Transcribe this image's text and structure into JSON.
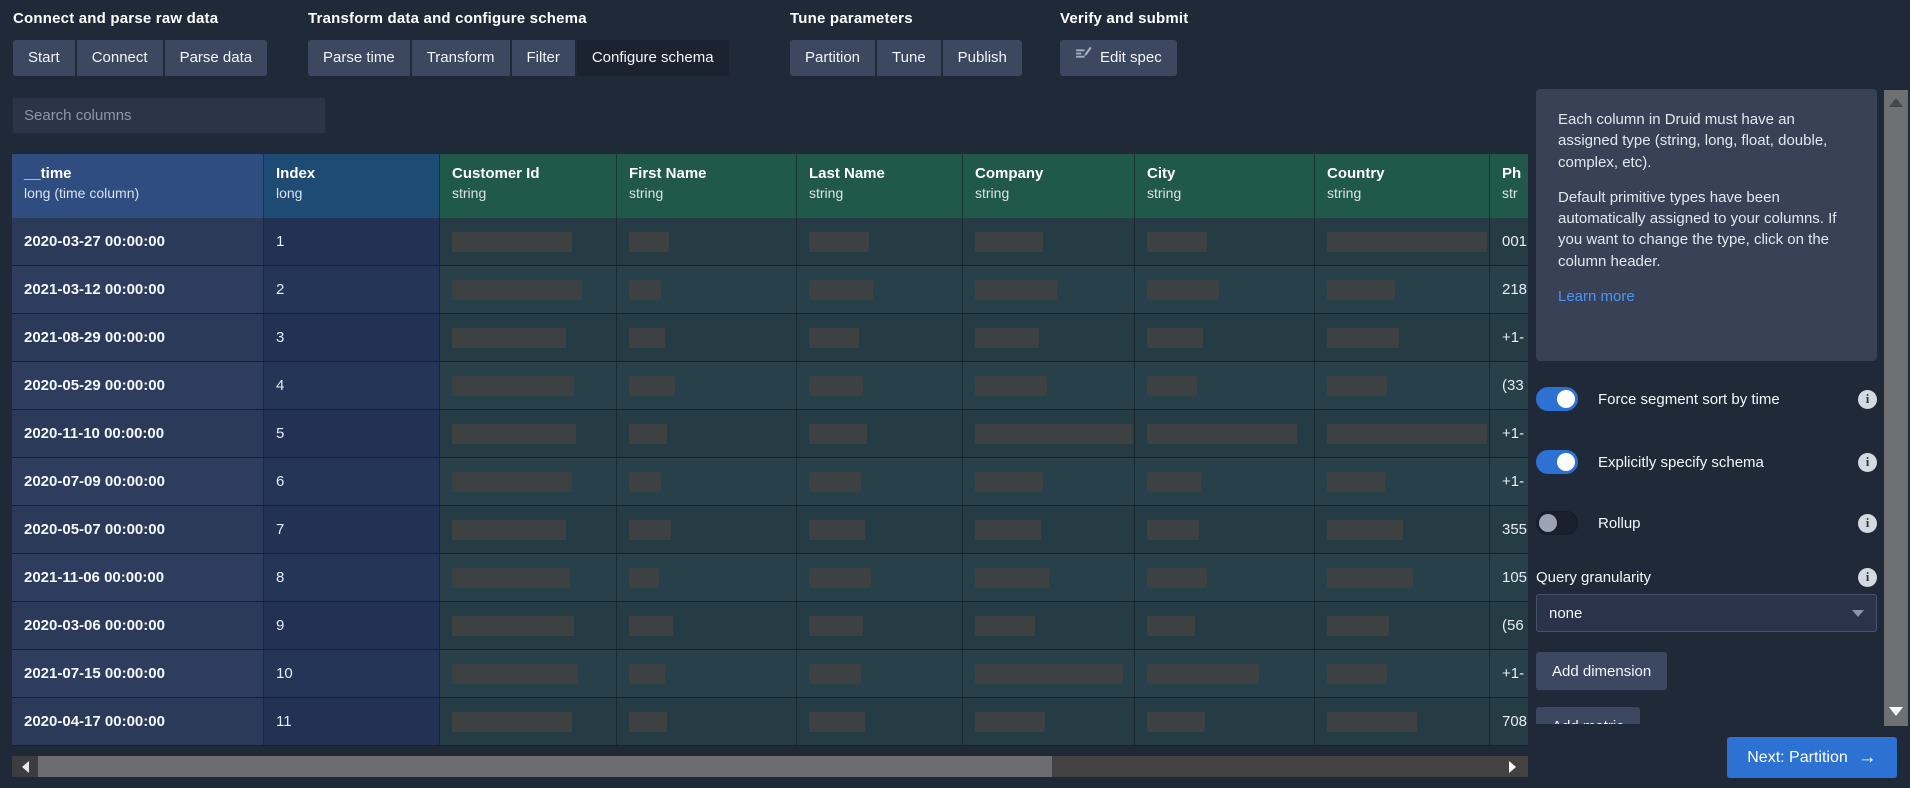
{
  "nav": {
    "active_step": "Configure schema",
    "sections": [
      {
        "label": "Connect and parse raw data",
        "steps": [
          {
            "label": "Start"
          },
          {
            "label": "Connect"
          },
          {
            "label": "Parse data"
          }
        ]
      },
      {
        "label": "Transform data and configure schema",
        "steps": [
          {
            "label": "Parse time"
          },
          {
            "label": "Transform"
          },
          {
            "label": "Filter"
          },
          {
            "label": "Configure schema"
          }
        ]
      },
      {
        "label": "Tune parameters",
        "steps": [
          {
            "label": "Partition"
          },
          {
            "label": "Tune"
          },
          {
            "label": "Publish"
          }
        ]
      },
      {
        "label": "Verify and submit",
        "steps": [
          {
            "label": "Edit spec",
            "icon": "edit-spec-icon"
          }
        ]
      }
    ]
  },
  "search": {
    "placeholder": "Search columns"
  },
  "table": {
    "columns": [
      {
        "name": "__time",
        "type": "long (time column)",
        "group": "time"
      },
      {
        "name": "Index",
        "type": "long",
        "group": "long"
      },
      {
        "name": "Customer Id",
        "type": "string",
        "group": "string"
      },
      {
        "name": "First Name",
        "type": "string",
        "group": "string"
      },
      {
        "name": "Last Name",
        "type": "string",
        "group": "string"
      },
      {
        "name": "Company",
        "type": "string",
        "group": "string"
      },
      {
        "name": "City",
        "type": "string",
        "group": "string"
      },
      {
        "name": "Country",
        "type": "string",
        "group": "string"
      },
      {
        "name": "Ph",
        "type": "str",
        "group": "string"
      }
    ],
    "rows": [
      {
        "time": "2020-03-27 00:00:00",
        "index": "1",
        "phone": "001",
        "redactions": [
          120,
          40,
          60,
          68,
          60,
          160
        ]
      },
      {
        "time": "2021-03-12 00:00:00",
        "index": "2",
        "phone": "218",
        "redactions": [
          130,
          32,
          64,
          82,
          72,
          68
        ]
      },
      {
        "time": "2021-08-29 00:00:00",
        "index": "3",
        "phone": "+1-",
        "redactions": [
          114,
          36,
          50,
          64,
          56,
          72
        ]
      },
      {
        "time": "2020-05-29 00:00:00",
        "index": "4",
        "phone": "(33",
        "redactions": [
          122,
          46,
          54,
          72,
          50,
          60
        ]
      },
      {
        "time": "2020-11-10 00:00:00",
        "index": "5",
        "phone": "+1-",
        "redactions": [
          124,
          38,
          58,
          158,
          150,
          160
        ]
      },
      {
        "time": "2020-07-09 00:00:00",
        "index": "6",
        "phone": "+1-",
        "redactions": [
          120,
          32,
          52,
          68,
          54,
          58
        ]
      },
      {
        "time": "2020-05-07 00:00:00",
        "index": "7",
        "phone": "355",
        "redactions": [
          114,
          42,
          56,
          66,
          52,
          76
        ]
      },
      {
        "time": "2021-11-06 00:00:00",
        "index": "8",
        "phone": "105",
        "redactions": [
          118,
          30,
          62,
          74,
          60,
          86
        ]
      },
      {
        "time": "2020-03-06 00:00:00",
        "index": "9",
        "phone": "(56",
        "redactions": [
          122,
          44,
          54,
          60,
          48,
          62
        ]
      },
      {
        "time": "2021-07-15 00:00:00",
        "index": "10",
        "phone": "+1-",
        "redactions": [
          126,
          36,
          52,
          148,
          112,
          60
        ]
      },
      {
        "time": "2020-04-17 00:00:00",
        "index": "11",
        "phone": "708",
        "redactions": [
          120,
          38,
          56,
          70,
          58,
          90
        ]
      }
    ]
  },
  "panel": {
    "callout": {
      "p1": "Each column in Druid must have an assigned type (string, long, float, double, complex, etc).",
      "p2": "Default primitive types have been automatically assigned to your columns. If you want to change the type, click on the column header.",
      "link": "Learn more"
    },
    "toggles": [
      {
        "label": "Force segment sort by time",
        "on": true
      },
      {
        "label": "Explicitly specify schema",
        "on": true
      },
      {
        "label": "Rollup",
        "on": false
      }
    ],
    "query_granularity": {
      "label": "Query granularity",
      "value": "none"
    },
    "add_dimension": "Add dimension",
    "add_metric": "Add metric",
    "next_label": "Next: Partition",
    "next_arrow": "→"
  },
  "colors": {
    "accent_blue": "#2d72d2",
    "link_blue": "#4b96f2",
    "header_time": "#2f4d80",
    "header_long": "#1e4b74",
    "header_string": "#215948",
    "page_bg": "#202938"
  }
}
